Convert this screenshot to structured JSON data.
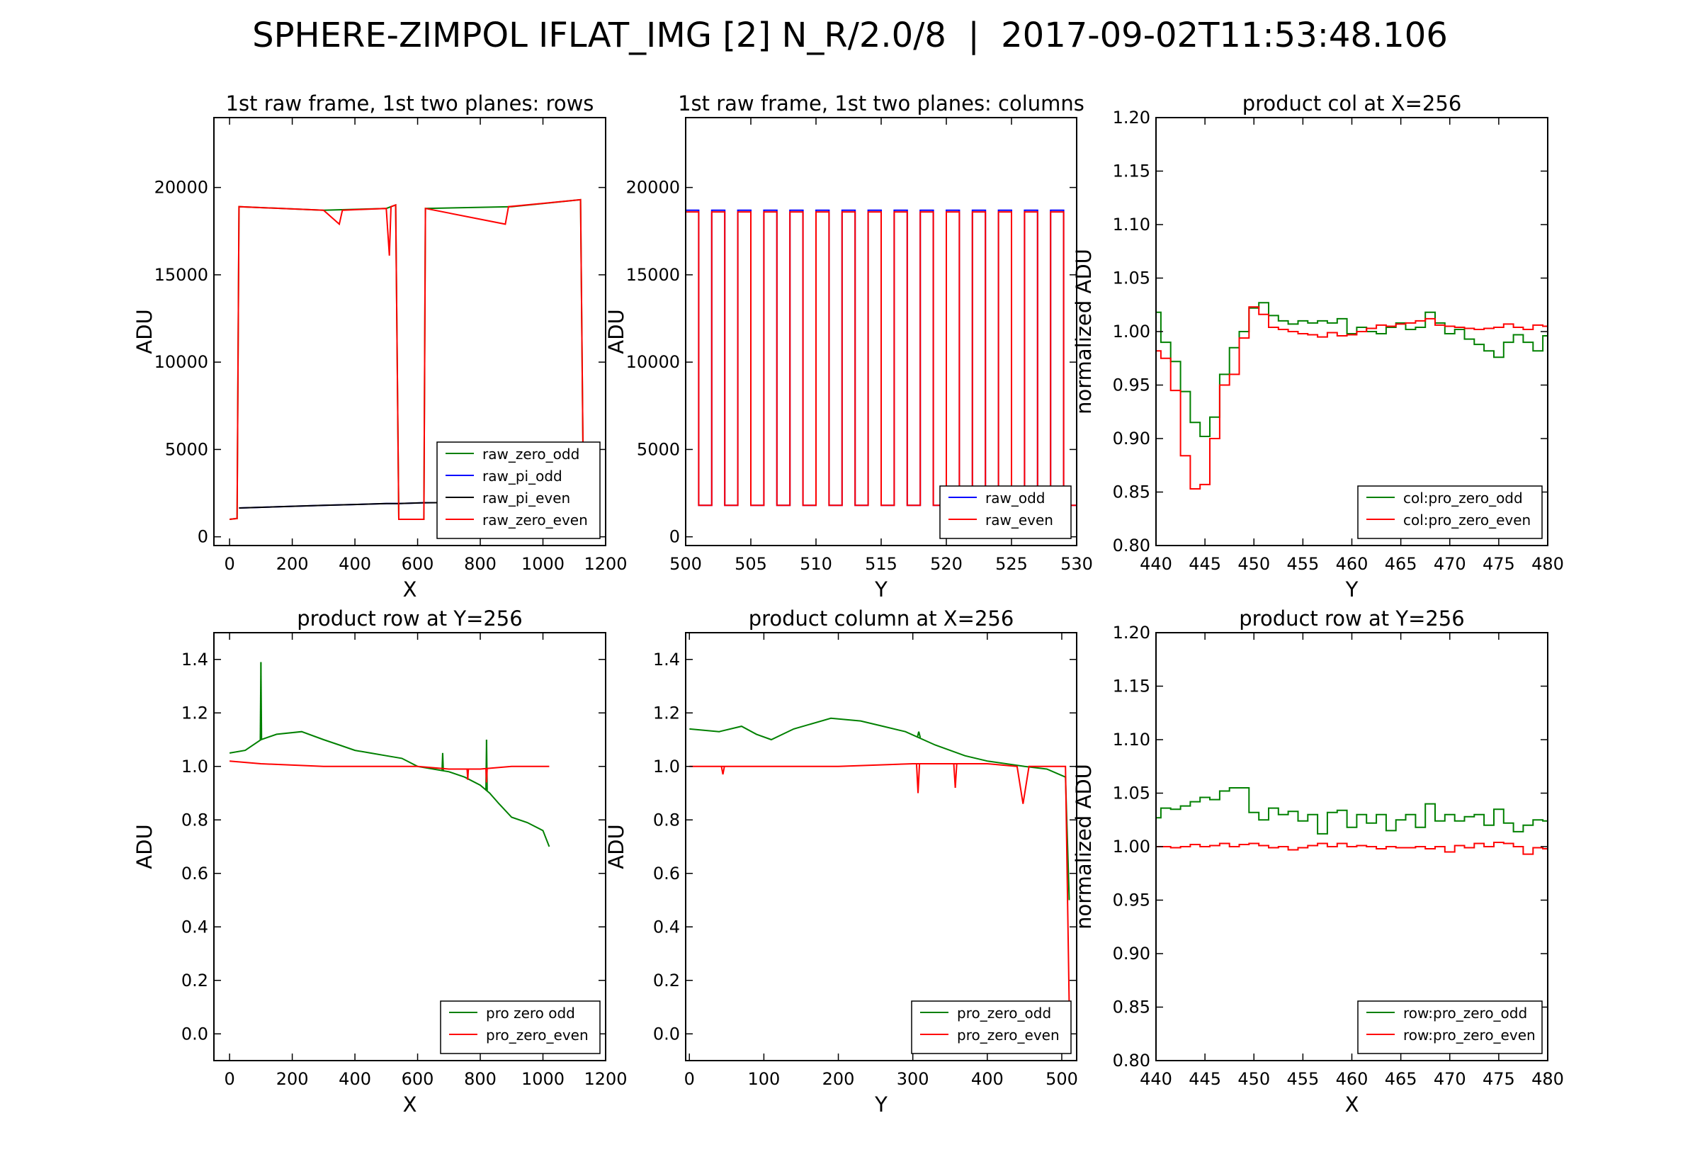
{
  "title": "SPHERE-ZIMPOL IFLAT_IMG [2] N_R/2.0/8  |  2017-09-02T11:53:48.106",
  "colors": {
    "green": "#008000",
    "blue": "#0000ff",
    "black": "#000000",
    "red": "#ff0000"
  },
  "chart_data": [
    {
      "type": "line",
      "title": "1st raw frame, 1st two planes: rows",
      "xlabel": "X",
      "ylabel": "ADU",
      "xlim": [
        -50,
        1200
      ],
      "ylim": [
        -500,
        24000
      ],
      "xticks": [
        "0",
        "200",
        "400",
        "600",
        "800",
        "1000",
        "1200"
      ],
      "yticks": [
        "0",
        "5000",
        "10000",
        "15000",
        "20000"
      ],
      "legend_position": "lower-right",
      "series": [
        {
          "name": "raw_zero_odd",
          "color": "green",
          "points": [
            [
              0,
              1000
            ],
            [
              24,
              1050
            ],
            [
              30,
              18900
            ],
            [
              300,
              18700
            ],
            [
              500,
              18800
            ],
            [
              530,
              19000
            ],
            [
              540,
              1000
            ],
            [
              620,
              1000
            ],
            [
              625,
              18800
            ],
            [
              900,
              18900
            ],
            [
              1120,
              19300
            ],
            [
              1130,
              1000
            ]
          ]
        },
        {
          "name": "raw_pi_odd",
          "color": "blue",
          "points": [
            [
              30,
              1650
            ],
            [
              300,
              1800
            ],
            [
              500,
              1900
            ],
            [
              540,
              1900
            ],
            [
              620,
              1950
            ],
            [
              1130,
              2000
            ]
          ]
        },
        {
          "name": "raw_pi_even",
          "color": "black",
          "points": [
            [
              30,
              1650
            ],
            [
              300,
              1800
            ],
            [
              500,
              1900
            ],
            [
              540,
              1900
            ],
            [
              620,
              1950
            ],
            [
              1130,
              2000
            ]
          ]
        },
        {
          "name": "raw_zero_even",
          "color": "red",
          "points": [
            [
              0,
              1000
            ],
            [
              24,
              1050
            ],
            [
              30,
              18900
            ],
            [
              300,
              18700
            ],
            [
              350,
              17900
            ],
            [
              360,
              18700
            ],
            [
              500,
              18800
            ],
            [
              510,
              16100
            ],
            [
              515,
              18900
            ],
            [
              530,
              19000
            ],
            [
              540,
              1000
            ],
            [
              620,
              1000
            ],
            [
              625,
              18800
            ],
            [
              880,
              17900
            ],
            [
              890,
              18900
            ],
            [
              1120,
              19300
            ],
            [
              1130,
              1000
            ]
          ]
        }
      ]
    },
    {
      "type": "line",
      "title": "1st raw frame, 1st two planes: columns",
      "xlabel": "Y",
      "ylabel": "ADU",
      "xlim": [
        500,
        530
      ],
      "ylim": [
        -500,
        24000
      ],
      "xticks": [
        "500",
        "505",
        "510",
        "515",
        "520",
        "525",
        "530"
      ],
      "yticks": [
        "0",
        "5000",
        "10000",
        "15000",
        "20000"
      ],
      "legend_position": "lower-right",
      "series": [
        {
          "name": "raw_odd",
          "color": "blue",
          "period": [
            500,
            530,
            1.0
          ],
          "high": 18700,
          "low": 1800
        },
        {
          "name": "raw_even",
          "color": "red",
          "period": [
            500,
            530,
            1.0
          ],
          "high": 18600,
          "low": 1800
        }
      ]
    },
    {
      "type": "line",
      "title": "product col at X=256",
      "xlabel": "Y",
      "ylabel": "normalized ADU",
      "xlim": [
        440,
        480
      ],
      "ylim": [
        0.8,
        1.2
      ],
      "xticks": [
        "440",
        "445",
        "450",
        "455",
        "460",
        "465",
        "470",
        "475",
        "480"
      ],
      "yticks": [
        "0.80",
        "0.85",
        "0.90",
        "0.95",
        "1.00",
        "1.05",
        "1.10",
        "1.15",
        "1.20"
      ],
      "legend_position": "lower-right",
      "series": [
        {
          "name": "col:pro_zero_odd",
          "color": "green",
          "x0": 440,
          "values": [
            1.018,
            0.99,
            0.972,
            0.944,
            0.915,
            0.902,
            0.92,
            0.96,
            0.985,
            1.0,
            1.022,
            1.027,
            1.015,
            1.01,
            1.007,
            1.01,
            1.008,
            1.01,
            1.008,
            1.012,
            0.998,
            1.004,
            1.0,
            0.998,
            1.004,
            1.008,
            1.002,
            1.004,
            1.018,
            1.008,
            0.998,
            1.002,
            0.993,
            0.988,
            0.982,
            0.976,
            0.99,
            0.997,
            0.99,
            0.982,
            0.996
          ]
        },
        {
          "name": "col:pro_zero_even",
          "color": "red",
          "x0": 440,
          "values": [
            0.982,
            0.975,
            0.945,
            0.884,
            0.853,
            0.857,
            0.9,
            0.95,
            0.96,
            0.994,
            1.023,
            1.016,
            1.004,
            1.002,
            1.0,
            0.998,
            0.997,
            0.995,
            0.999,
            0.996,
            0.997,
            1.0,
            1.003,
            1.006,
            1.005,
            1.007,
            1.008,
            1.01,
            1.012,
            1.006,
            1.005,
            1.004,
            1.003,
            1.002,
            1.003,
            1.004,
            1.007,
            1.004,
            1.002,
            1.006,
            1.005
          ]
        }
      ]
    },
    {
      "type": "line",
      "title": "product row at Y=256",
      "xlabel": "X",
      "ylabel": "ADU",
      "xlim": [
        -50,
        1200
      ],
      "ylim": [
        -0.1,
        1.5
      ],
      "xticks": [
        "0",
        "200",
        "400",
        "600",
        "800",
        "1000",
        "1200"
      ],
      "yticks": [
        "0.0",
        "0.2",
        "0.4",
        "0.6",
        "0.8",
        "1.0",
        "1.2",
        "1.4"
      ],
      "legend_position": "lower-right",
      "series": [
        {
          "name": "pro zero odd",
          "color": "green",
          "points": [
            [
              0,
              1.05
            ],
            [
              50,
              1.06
            ],
            [
              100,
              1.1
            ],
            [
              150,
              1.12
            ],
            [
              230,
              1.13
            ],
            [
              300,
              1.1
            ],
            [
              350,
              1.08
            ],
            [
              400,
              1.06
            ],
            [
              450,
              1.05
            ],
            [
              500,
              1.04
            ],
            [
              550,
              1.03
            ],
            [
              600,
              1.0
            ],
            [
              650,
              0.99
            ],
            [
              700,
              0.98
            ],
            [
              750,
              0.96
            ],
            [
              800,
              0.93
            ],
            [
              830,
              0.9
            ],
            [
              860,
              0.86
            ],
            [
              900,
              0.81
            ],
            [
              950,
              0.79
            ],
            [
              1000,
              0.76
            ],
            [
              1020,
              0.7
            ]
          ],
          "spikes": [
            [
              100,
              1.39
            ],
            [
              680,
              1.05
            ],
            [
              820,
              1.1
            ]
          ]
        },
        {
          "name": "pro_zero_even",
          "color": "red",
          "points": [
            [
              0,
              1.02
            ],
            [
              100,
              1.01
            ],
            [
              300,
              1.0
            ],
            [
              500,
              1.0
            ],
            [
              600,
              1.0
            ],
            [
              700,
              0.99
            ],
            [
              800,
              0.99
            ],
            [
              900,
              1.0
            ],
            [
              1020,
              1.0
            ]
          ],
          "spikes": [
            [
              760,
              0.95
            ],
            [
              820,
              0.94
            ]
          ]
        }
      ]
    },
    {
      "type": "line",
      "title": "product column at X=256",
      "xlabel": "Y",
      "ylabel": "ADU",
      "xlim": [
        -5,
        520
      ],
      "ylim": [
        -0.1,
        1.5
      ],
      "xticks": [
        "0",
        "100",
        "200",
        "300",
        "400",
        "500"
      ],
      "yticks": [
        "0.0",
        "0.2",
        "0.4",
        "0.6",
        "0.8",
        "1.0",
        "1.2",
        "1.4"
      ],
      "legend_position": "lower-right",
      "series": [
        {
          "name": "pro_zero_odd",
          "color": "green",
          "points": [
            [
              0,
              1.14
            ],
            [
              40,
              1.13
            ],
            [
              70,
              1.15
            ],
            [
              90,
              1.12
            ],
            [
              110,
              1.1
            ],
            [
              140,
              1.14
            ],
            [
              190,
              1.18
            ],
            [
              230,
              1.17
            ],
            [
              260,
              1.15
            ],
            [
              290,
              1.13
            ],
            [
              330,
              1.08
            ],
            [
              370,
              1.04
            ],
            [
              400,
              1.02
            ],
            [
              450,
              1.0
            ],
            [
              480,
              0.99
            ],
            [
              505,
              0.96
            ],
            [
              510,
              0.5
            ]
          ],
          "spikes": [
            [
              308,
              1.13
            ]
          ]
        },
        {
          "name": "pro_zero_even",
          "color": "red",
          "points": [
            [
              0,
              1.0
            ],
            [
              100,
              1.0
            ],
            [
              200,
              1.0
            ],
            [
              300,
              1.01
            ],
            [
              400,
              1.01
            ],
            [
              440,
              1.0
            ],
            [
              448,
              0.86
            ],
            [
              456,
              1.0
            ],
            [
              505,
              1.0
            ],
            [
              510,
              0.1
            ]
          ],
          "spikes": [
            [
              45,
              0.97
            ],
            [
              307,
              0.9
            ],
            [
              357,
              0.92
            ]
          ]
        }
      ]
    },
    {
      "type": "line",
      "title": "product row at Y=256",
      "xlabel": "X",
      "ylabel": "normalized ADU",
      "xlim": [
        440,
        480
      ],
      "ylim": [
        0.8,
        1.2
      ],
      "xticks": [
        "440",
        "445",
        "450",
        "455",
        "460",
        "465",
        "470",
        "475",
        "480"
      ],
      "yticks": [
        "0.80",
        "0.85",
        "0.90",
        "0.95",
        "1.00",
        "1.05",
        "1.10",
        "1.15",
        "1.20"
      ],
      "legend_position": "lower-right",
      "series": [
        {
          "name": "row:pro_zero_odd",
          "color": "green",
          "x0": 440,
          "values": [
            1.027,
            1.036,
            1.035,
            1.038,
            1.042,
            1.046,
            1.044,
            1.052,
            1.055,
            1.055,
            1.032,
            1.025,
            1.036,
            1.03,
            1.033,
            1.024,
            1.03,
            1.012,
            1.032,
            1.034,
            1.018,
            1.03,
            1.022,
            1.03,
            1.015,
            1.025,
            1.03,
            1.018,
            1.04,
            1.024,
            1.03,
            1.024,
            1.028,
            1.03,
            1.02,
            1.035,
            1.022,
            1.014,
            1.02,
            1.025,
            1.024
          ]
        },
        {
          "name": "row:pro_zero_even",
          "color": "red",
          "x0": 440,
          "values": [
            1.0,
            1.0,
            0.999,
            1.0,
            1.002,
            1.0,
            1.001,
            1.003,
            1.0,
            1.002,
            1.003,
            1.001,
            0.999,
            1.0,
            0.997,
            0.999,
            1.001,
            1.003,
            1.0,
            1.003,
            1.0,
            1.001,
            1.0,
            0.998,
            1.0,
            0.999,
            0.999,
            1.0,
            0.998,
            1.0,
            0.995,
            1.001,
            0.999,
            1.003,
            1.0,
            1.004,
            1.003,
            1.0,
            0.993,
            0.999,
            0.998
          ]
        }
      ]
    }
  ]
}
